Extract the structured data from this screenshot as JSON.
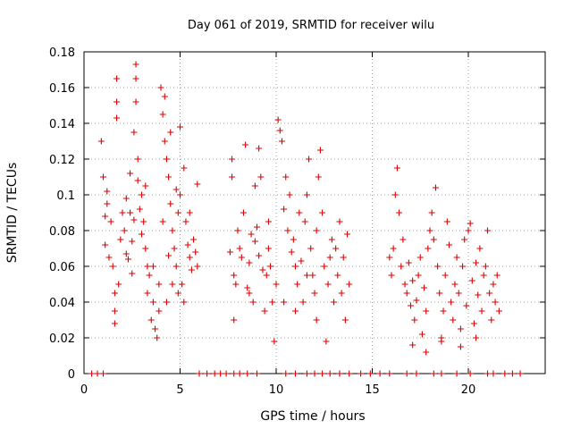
{
  "chart_data": {
    "type": "scatter",
    "title": "Day 061 of 2019, SRMTID for receiver wilu",
    "xlabel": "GPS time / hours",
    "ylabel": "SRMTID / TECUs",
    "xlim": [
      0,
      24
    ],
    "ylim": [
      0,
      0.18
    ],
    "xticks": [
      0,
      5,
      10,
      15,
      20
    ],
    "xtick_labels": [
      "0",
      "5",
      "10",
      "15",
      "20"
    ],
    "yticks": [
      0,
      0.02,
      0.04,
      0.06,
      0.08,
      0.1,
      0.12,
      0.14,
      0.16,
      0.18
    ],
    "ytick_labels": [
      "0",
      "0.02",
      "0.04",
      "0.06",
      "0.08",
      "0.1",
      "0.12",
      "0.14",
      "0.16",
      "0.18"
    ],
    "grid": true,
    "marker": "+",
    "color": "#e00000",
    "series": [
      {
        "name": "SRMTID",
        "points": [
          [
            0.4,
            0
          ],
          [
            0.7,
            0
          ],
          [
            1.0,
            0
          ],
          [
            0.9,
            0.13
          ],
          [
            1.0,
            0.11
          ],
          [
            1.1,
            0.088
          ],
          [
            1.2,
            0.095
          ],
          [
            1.1,
            0.072
          ],
          [
            1.3,
            0.065
          ],
          [
            1.2,
            0.102
          ],
          [
            1.4,
            0.085
          ],
          [
            1.5,
            0.06
          ],
          [
            1.6,
            0.045
          ],
          [
            1.7,
            0.165
          ],
          [
            1.7,
            0.152
          ],
          [
            1.7,
            0.143
          ],
          [
            1.8,
            0.05
          ],
          [
            1.6,
            0.035
          ],
          [
            1.6,
            0.028
          ],
          [
            1.9,
            0.075
          ],
          [
            2.0,
            0.09
          ],
          [
            2.1,
            0.08
          ],
          [
            2.2,
            0.098
          ],
          [
            2.3,
            0.064
          ],
          [
            2.4,
            0.112
          ],
          [
            2.5,
            0.074
          ],
          [
            2.6,
            0.086
          ],
          [
            2.7,
            0.173
          ],
          [
            2.7,
            0.165
          ],
          [
            2.7,
            0.152
          ],
          [
            2.8,
            0.12
          ],
          [
            2.8,
            0.108
          ],
          [
            2.9,
            0.092
          ],
          [
            3.0,
            0.078
          ],
          [
            3.1,
            0.085
          ],
          [
            3.2,
            0.07
          ],
          [
            3.3,
            0.06
          ],
          [
            3.4,
            0.055
          ],
          [
            3.5,
            0.03
          ],
          [
            3.6,
            0.04
          ],
          [
            3.7,
            0.025
          ],
          [
            3.8,
            0.02
          ],
          [
            3.9,
            0.05
          ],
          [
            3.2,
            0.105
          ],
          [
            2.6,
            0.135
          ],
          [
            2.4,
            0.09
          ],
          [
            3.0,
            0.1
          ],
          [
            2.2,
            0.067
          ],
          [
            2.5,
            0.056
          ],
          [
            3.3,
            0.045
          ],
          [
            3.6,
            0.06
          ],
          [
            3.9,
            0.035
          ],
          [
            4.0,
            0.16
          ],
          [
            4.1,
            0.145
          ],
          [
            4.2,
            0.13
          ],
          [
            4.2,
            0.155
          ],
          [
            4.3,
            0.12
          ],
          [
            4.4,
            0.11
          ],
          [
            4.5,
            0.095
          ],
          [
            4.5,
            0.135
          ],
          [
            4.6,
            0.08
          ],
          [
            4.7,
            0.07
          ],
          [
            4.8,
            0.06
          ],
          [
            4.9,
            0.09
          ],
          [
            5.0,
            0.138
          ],
          [
            5.0,
            0.1
          ],
          [
            5.1,
            0.05
          ],
          [
            5.2,
            0.115
          ],
          [
            5.3,
            0.085
          ],
          [
            5.4,
            0.072
          ],
          [
            5.5,
            0.065
          ],
          [
            5.6,
            0.058
          ],
          [
            5.7,
            0.075
          ],
          [
            5.8,
            0.068
          ],
          [
            5.9,
            0.106
          ],
          [
            5.9,
            0.06
          ],
          [
            4.3,
            0.04
          ],
          [
            4.6,
            0.05
          ],
          [
            4.8,
            0.103
          ],
          [
            5.2,
            0.04
          ],
          [
            5.5,
            0.09
          ],
          [
            4.1,
            0.085
          ],
          [
            4.4,
            0.066
          ],
          [
            4.9,
            0.045
          ],
          [
            6.0,
            0
          ],
          [
            6.4,
            0
          ],
          [
            6.8,
            0
          ],
          [
            7.1,
            0
          ],
          [
            7.4,
            0
          ],
          [
            7.8,
            0
          ],
          [
            8.1,
            0
          ],
          [
            8.5,
            0
          ],
          [
            9.0,
            0
          ],
          [
            7.6,
            0.068
          ],
          [
            7.7,
            0.12
          ],
          [
            7.7,
            0.11
          ],
          [
            7.8,
            0.055
          ],
          [
            7.8,
            0.03
          ],
          [
            7.9,
            0.05
          ],
          [
            8.0,
            0.08
          ],
          [
            8.1,
            0.07
          ],
          [
            8.2,
            0.065
          ],
          [
            8.3,
            0.09
          ],
          [
            8.4,
            0.128
          ],
          [
            8.5,
            0.048
          ],
          [
            8.6,
            0.062
          ],
          [
            8.7,
            0.078
          ],
          [
            8.8,
            0.04
          ],
          [
            8.9,
            0.074
          ],
          [
            9.0,
            0.082
          ],
          [
            9.1,
            0.066
          ],
          [
            9.2,
            0.11
          ],
          [
            9.3,
            0.058
          ],
          [
            9.4,
            0.035
          ],
          [
            9.5,
            0.055
          ],
          [
            9.6,
            0.07
          ],
          [
            9.7,
            0.06
          ],
          [
            9.8,
            0.04
          ],
          [
            9.9,
            0.018
          ],
          [
            10.0,
            0.05
          ],
          [
            9.1,
            0.126
          ],
          [
            8.9,
            0.105
          ],
          [
            8.6,
            0.045
          ],
          [
            9.6,
            0.085
          ],
          [
            10.1,
            0.142
          ],
          [
            10.2,
            0.136
          ],
          [
            10.3,
            0.13
          ],
          [
            10.4,
            0.092
          ],
          [
            10.5,
            0.11
          ],
          [
            10.6,
            0.08
          ],
          [
            10.7,
            0.1
          ],
          [
            10.8,
            0.068
          ],
          [
            10.9,
            0.075
          ],
          [
            11.0,
            0.06
          ],
          [
            11.1,
            0.05
          ],
          [
            11.2,
            0.09
          ],
          [
            11.3,
            0.063
          ],
          [
            11.4,
            0.04
          ],
          [
            11.5,
            0.085
          ],
          [
            11.6,
            0.1
          ],
          [
            11.7,
            0.12
          ],
          [
            11.8,
            0.07
          ],
          [
            11.9,
            0.055
          ],
          [
            12.0,
            0.045
          ],
          [
            12.1,
            0.08
          ],
          [
            12.2,
            0.11
          ],
          [
            12.3,
            0.125
          ],
          [
            12.4,
            0.09
          ],
          [
            12.5,
            0.06
          ],
          [
            12.6,
            0.018
          ],
          [
            12.7,
            0.05
          ],
          [
            12.8,
            0.065
          ],
          [
            12.9,
            0.075
          ],
          [
            13.0,
            0.04
          ],
          [
            13.1,
            0.07
          ],
          [
            13.2,
            0.055
          ],
          [
            13.3,
            0.085
          ],
          [
            13.4,
            0.045
          ],
          [
            13.5,
            0.065
          ],
          [
            13.6,
            0.03
          ],
          [
            13.7,
            0.078
          ],
          [
            13.8,
            0.05
          ],
          [
            10.4,
            0.04
          ],
          [
            11.0,
            0.035
          ],
          [
            11.6,
            0.055
          ],
          [
            12.1,
            0.03
          ],
          [
            10.5,
            0
          ],
          [
            11.0,
            0
          ],
          [
            11.6,
            0
          ],
          [
            12.0,
            0
          ],
          [
            12.4,
            0
          ],
          [
            12.8,
            0
          ],
          [
            13.3,
            0
          ],
          [
            13.8,
            0
          ],
          [
            14.4,
            0
          ],
          [
            14.9,
            0
          ],
          [
            15.4,
            0
          ],
          [
            15.9,
            0
          ],
          [
            15.9,
            0.065
          ],
          [
            16.0,
            0.055
          ],
          [
            16.1,
            0.07
          ],
          [
            16.2,
            0.1
          ],
          [
            16.3,
            0.115
          ],
          [
            16.4,
            0.09
          ],
          [
            16.5,
            0.06
          ],
          [
            16.6,
            0.075
          ],
          [
            16.7,
            0.05
          ],
          [
            16.8,
            0.045
          ],
          [
            16.9,
            0.062
          ],
          [
            17.0,
            0.038
          ],
          [
            17.1,
            0.052
          ],
          [
            17.2,
            0.03
          ],
          [
            17.3,
            0.041
          ],
          [
            17.4,
            0.055
          ],
          [
            17.5,
            0.065
          ],
          [
            17.6,
            0.022
          ],
          [
            17.7,
            0.048
          ],
          [
            17.8,
            0.035
          ],
          [
            17.9,
            0.07
          ],
          [
            18.0,
            0.08
          ],
          [
            18.1,
            0.09
          ],
          [
            18.2,
            0.075
          ],
          [
            18.3,
            0.104
          ],
          [
            18.4,
            0.06
          ],
          [
            18.5,
            0.045
          ],
          [
            18.6,
            0.02
          ],
          [
            18.7,
            0.035
          ],
          [
            18.8,
            0.055
          ],
          [
            18.9,
            0.085
          ],
          [
            19.0,
            0.072
          ],
          [
            19.1,
            0.04
          ],
          [
            19.2,
            0.03
          ],
          [
            19.3,
            0.05
          ],
          [
            19.4,
            0.065
          ],
          [
            19.5,
            0.045
          ],
          [
            19.6,
            0.025
          ],
          [
            19.7,
            0.06
          ],
          [
            19.8,
            0.075
          ],
          [
            19.9,
            0.038
          ],
          [
            20.0,
            0.08
          ],
          [
            20.1,
            0.084
          ],
          [
            20.2,
            0.052
          ],
          [
            20.3,
            0.028
          ],
          [
            20.4,
            0.062
          ],
          [
            20.5,
            0.044
          ],
          [
            20.6,
            0.07
          ],
          [
            20.7,
            0.035
          ],
          [
            20.8,
            0.055
          ],
          [
            20.9,
            0.06
          ],
          [
            21.0,
            0.08
          ],
          [
            21.1,
            0.045
          ],
          [
            21.2,
            0.03
          ],
          [
            21.3,
            0.05
          ],
          [
            21.4,
            0.04
          ],
          [
            21.5,
            0.055
          ],
          [
            21.6,
            0.035
          ],
          [
            17.1,
            0.016
          ],
          [
            17.8,
            0.012
          ],
          [
            18.6,
            0.018
          ],
          [
            19.6,
            0.015
          ],
          [
            20.4,
            0.02
          ],
          [
            16.8,
            0
          ],
          [
            17.3,
            0
          ],
          [
            18.2,
            0
          ],
          [
            18.6,
            0
          ],
          [
            19.4,
            0
          ],
          [
            20.1,
            0
          ],
          [
            21.0,
            0
          ],
          [
            21.3,
            0
          ],
          [
            21.9,
            0
          ],
          [
            22.3,
            0
          ],
          [
            22.7,
            0
          ]
        ]
      }
    ]
  }
}
